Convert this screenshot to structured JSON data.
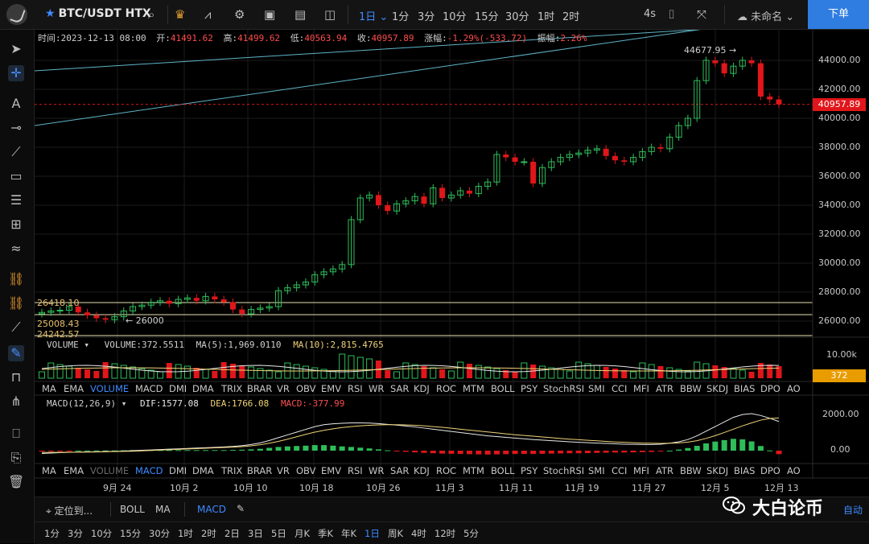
{
  "topbar": {
    "symbol": "BTC/USDT HTX",
    "timeframes": [
      "1日",
      "1分",
      "3分",
      "10分",
      "15分",
      "30分",
      "1时",
      "2时"
    ],
    "active_timeframe": "1日",
    "countdown": "4s",
    "layout_name": "未命名",
    "order_button": "下单"
  },
  "ohlc": {
    "time_label": "时间:",
    "time": "2023-12-13 08:00",
    "open_label": "开:",
    "open": "41491.62",
    "high_label": "高:",
    "high": "41499.62",
    "low_label": "低:",
    "low": "40563.94",
    "close_label": "收:",
    "close": "40957.89",
    "change_label": "涨幅:",
    "change": "-1.29%(-533.72)",
    "amp_label": "振幅:",
    "amp": "2.26%"
  },
  "price_axis": {
    "labels": [
      "44000.00",
      "42000.00",
      "40000.00",
      "38000.00",
      "36000.00",
      "34000.00",
      "32000.00",
      "30000.00",
      "28000.00",
      "26000.00"
    ],
    "current_price": "40957.89",
    "high_annotation": "44677.95",
    "annotation_26000": "26000"
  },
  "levels": [
    "26418.10",
    "25008.43",
    "24242.57"
  ],
  "volume": {
    "legend_name": "VOLUME",
    "volume_text": "VOLUME:372.5511",
    "ma5_text": "MA(5):1,969.0110",
    "ma10_text": "MA(10):2,815.4765",
    "axis_label": "10.00k",
    "current": "372"
  },
  "indicator_tabs": [
    "MA",
    "EMA",
    "VOLUME",
    "MACD",
    "DMI",
    "DMA",
    "TRIX",
    "BRAR",
    "VR",
    "OBV",
    "EMV",
    "RSI",
    "WR",
    "SAR",
    "KDJ",
    "ROC",
    "MTM",
    "BOLL",
    "PSY",
    "StochRSI",
    "SMI",
    "CCI",
    "MFI",
    "ATR",
    "BBW",
    "SKDJ",
    "BIAS",
    "DPO",
    "AO"
  ],
  "macd": {
    "legend_name": "MACD(12,26,9)",
    "dif_text": "DIF:1577.08",
    "dea_text": "DEA:1766.08",
    "macd_text": "MACD:-377.99",
    "axis_labels": [
      "2000.00",
      "0.00"
    ]
  },
  "x_axis": [
    "9月 24",
    "10月 2",
    "10月 10",
    "10月 18",
    "10月 26",
    "11月 3",
    "11月 11",
    "11月 19",
    "11月 27",
    "12月 5",
    "12月 13"
  ],
  "bottom": {
    "locate": "定位到...",
    "overlays": [
      "BOLL",
      "MA"
    ],
    "sub_indicator": "MACD",
    "periods": [
      "1分",
      "3分",
      "10分",
      "15分",
      "30分",
      "1时",
      "2时",
      "2日",
      "3日",
      "5日",
      "月K",
      "季K",
      "年K",
      "1日",
      "周K",
      "4时",
      "12时",
      "5分"
    ],
    "active_period": "1日",
    "auto": "自动"
  },
  "watermark": "大白论币",
  "colors": {
    "up": "#2ebd59",
    "down": "#e0161a",
    "accent": "#3d8bff",
    "dif": "#e8e8e8",
    "dea": "#f0d278"
  },
  "chart_data": {
    "type": "candlestick",
    "x_axis_labels": [
      "9月 24",
      "10月 2",
      "10月 10",
      "10月 18",
      "10月 26",
      "11月 3",
      "11月 11",
      "11月 19",
      "11月 27",
      "12月 5",
      "12月 13"
    ],
    "y_range": [
      25000,
      45000
    ],
    "last_close": 40957.89,
    "annotated_high": 44677.95,
    "closes": [
      26600,
      26700,
      26750,
      27000,
      26600,
      26400,
      26200,
      26100,
      26300,
      26700,
      27000,
      27100,
      27300,
      27400,
      27200,
      27500,
      27600,
      27400,
      27700,
      27500,
      27300,
      26800,
      26500,
      26800,
      26900,
      27000,
      28100,
      28300,
      28500,
      28700,
      29200,
      29400,
      29600,
      29900,
      33000,
      34500,
      34700,
      34000,
      33600,
      34100,
      34300,
      34600,
      34100,
      35200,
      34500,
      34700,
      35000,
      34800,
      35300,
      35600,
      37500,
      37300,
      37000,
      37000,
      35500,
      36600,
      37000,
      37300,
      37500,
      37600,
      37800,
      37900,
      37400,
      37100,
      37000,
      37300,
      37700,
      38000,
      37900,
      38700,
      39500,
      40000,
      42600,
      44000,
      43800,
      43100,
      43600,
      44000,
      43800,
      41500,
      41300,
      40958
    ],
    "macd_dif": [
      -150,
      -130,
      -110,
      -90,
      -80,
      -70,
      -60,
      -50,
      -40,
      -20,
      0,
      20,
      40,
      60,
      80,
      100,
      120,
      140,
      160,
      180,
      200,
      230,
      270,
      330,
      420,
      550,
      700,
      850,
      1000,
      1150,
      1300,
      1400,
      1450,
      1480,
      1500,
      1500,
      1490,
      1460,
      1420,
      1380,
      1330,
      1280,
      1220,
      1160,
      1100,
      1040,
      980,
      920,
      860,
      800,
      760,
      720,
      680,
      640,
      600,
      570,
      540,
      510,
      480,
      450,
      430,
      410,
      390,
      370,
      350,
      340,
      330,
      330,
      350,
      400,
      480,
      600,
      800,
      1050,
      1300,
      1550,
      1800,
      1950,
      2000,
      1900,
      1750,
      1577
    ],
    "macd_dea": [
      -100,
      -95,
      -90,
      -85,
      -80,
      -75,
      -70,
      -60,
      -50,
      -40,
      -30,
      -10,
      10,
      30,
      50,
      70,
      90,
      110,
      130,
      150,
      170,
      190,
      220,
      260,
      320,
      400,
      500,
      620,
      750,
      880,
      1000,
      1100,
      1180,
      1250,
      1300,
      1340,
      1370,
      1390,
      1400,
      1400,
      1390,
      1370,
      1340,
      1300,
      1260,
      1210,
      1160,
      1110,
      1060,
      1010,
      960,
      910,
      860,
      820,
      780,
      740,
      700,
      660,
      620,
      590,
      560,
      530,
      500,
      470,
      450,
      430,
      410,
      400,
      390,
      400,
      420,
      460,
      540,
      660,
      810,
      980,
      1160,
      1340,
      1500,
      1650,
      1740,
      1766
    ]
  }
}
